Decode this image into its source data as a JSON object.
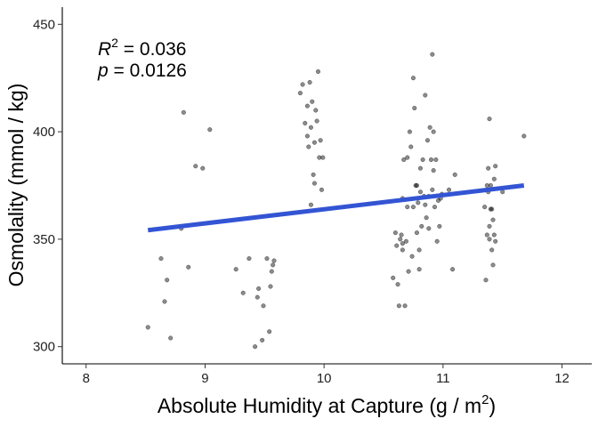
{
  "chart_data": {
    "type": "scatter",
    "xlabel": "Absolute Humidity at Capture (g / m",
    "xlabel_sup": "2",
    "xlabel_end": ")",
    "ylabel": "Osmolality (mmol / kg)",
    "xlim": [
      7.8,
      12.25
    ],
    "ylim": [
      292,
      458
    ],
    "x_ticks": [
      8,
      9,
      10,
      11,
      12
    ],
    "y_ticks": [
      300,
      350,
      400,
      450
    ],
    "grid": false,
    "annotation": {
      "r2_label": "R",
      "r2_sup": "2",
      "r2_value": " = 0.036",
      "p_label": "p",
      "p_value": " = 0.0126"
    },
    "regression": {
      "x": [
        8.52,
        11.68
      ],
      "y": [
        354.2,
        375.0
      ],
      "color": "#3355d4"
    },
    "points": [
      [
        8.52,
        309
      ],
      [
        8.63,
        341
      ],
      [
        8.66,
        321
      ],
      [
        8.68,
        331
      ],
      [
        8.71,
        304
      ],
      [
        8.8,
        355
      ],
      [
        8.82,
        409
      ],
      [
        8.86,
        337
      ],
      [
        8.92,
        384
      ],
      [
        8.98,
        383
      ],
      [
        9.04,
        401
      ],
      [
        9.26,
        336
      ],
      [
        9.32,
        325
      ],
      [
        9.37,
        341
      ],
      [
        9.42,
        300
      ],
      [
        9.44,
        323
      ],
      [
        9.45,
        327
      ],
      [
        9.48,
        303
      ],
      [
        9.49,
        319
      ],
      [
        9.52,
        341
      ],
      [
        9.54,
        307
      ],
      [
        9.55,
        328
      ],
      [
        9.56,
        335
      ],
      [
        9.57,
        338
      ],
      [
        9.58,
        340
      ],
      [
        9.8,
        418
      ],
      [
        9.82,
        422
      ],
      [
        9.84,
        404
      ],
      [
        9.86,
        398
      ],
      [
        9.87,
        393
      ],
      [
        9.88,
        423
      ],
      [
        9.89,
        402
      ],
      [
        9.9,
        414
      ],
      [
        9.91,
        380
      ],
      [
        9.92,
        395
      ],
      [
        9.93,
        410
      ],
      [
        9.94,
        405
      ],
      [
        9.95,
        428
      ],
      [
        9.96,
        388
      ],
      [
        9.97,
        396
      ],
      [
        9.98,
        373
      ],
      [
        9.99,
        388
      ],
      [
        9.89,
        366
      ],
      [
        9.92,
        376
      ],
      [
        9.86,
        412
      ],
      [
        10.58,
        332
      ],
      [
        10.6,
        353
      ],
      [
        10.61,
        347
      ],
      [
        10.62,
        329
      ],
      [
        10.63,
        319
      ],
      [
        10.64,
        350
      ],
      [
        10.65,
        352
      ],
      [
        10.66,
        345
      ],
      [
        10.66,
        369
      ],
      [
        10.67,
        387
      ],
      [
        10.68,
        319
      ],
      [
        10.69,
        349
      ],
      [
        10.7,
        365
      ],
      [
        10.71,
        335
      ],
      [
        10.72,
        400
      ],
      [
        10.73,
        393
      ],
      [
        10.74,
        342
      ],
      [
        10.75,
        365
      ],
      [
        10.75,
        425
      ],
      [
        10.76,
        411
      ],
      [
        10.77,
        375
      ],
      [
        10.78,
        353
      ],
      [
        10.79,
        367
      ],
      [
        10.8,
        345
      ],
      [
        10.81,
        372
      ],
      [
        10.81,
        383
      ],
      [
        10.82,
        356
      ],
      [
        10.83,
        387
      ],
      [
        10.84,
        370
      ],
      [
        10.85,
        366
      ],
      [
        10.85,
        417
      ],
      [
        10.86,
        360
      ],
      [
        10.87,
        396
      ],
      [
        10.88,
        355
      ],
      [
        10.89,
        402
      ],
      [
        10.9,
        387
      ],
      [
        10.91,
        373
      ],
      [
        10.91,
        436
      ],
      [
        10.92,
        400
      ],
      [
        10.93,
        365
      ],
      [
        10.94,
        387
      ],
      [
        10.95,
        349
      ],
      [
        10.96,
        368
      ],
      [
        10.97,
        356
      ],
      [
        10.98,
        369
      ],
      [
        10.99,
        371
      ],
      [
        10.8,
        336
      ],
      [
        10.7,
        388
      ],
      [
        10.66,
        348
      ],
      [
        10.88,
        370
      ],
      [
        10.78,
        375
      ],
      [
        10.92,
        382
      ],
      [
        11.05,
        373
      ],
      [
        11.08,
        336
      ],
      [
        11.1,
        380
      ],
      [
        11.35,
        365
      ],
      [
        11.36,
        331
      ],
      [
        11.37,
        352
      ],
      [
        11.37,
        375
      ],
      [
        11.38,
        383
      ],
      [
        11.38,
        372
      ],
      [
        11.39,
        350
      ],
      [
        11.39,
        406
      ],
      [
        11.4,
        364
      ],
      [
        11.4,
        375
      ],
      [
        11.41,
        345
      ],
      [
        11.42,
        359
      ],
      [
        11.42,
        338
      ],
      [
        11.43,
        352
      ],
      [
        11.43,
        378
      ],
      [
        11.44,
        349
      ],
      [
        11.44,
        384
      ],
      [
        11.39,
        356
      ],
      [
        11.41,
        364
      ],
      [
        11.5,
        372
      ],
      [
        11.68,
        398
      ]
    ]
  }
}
